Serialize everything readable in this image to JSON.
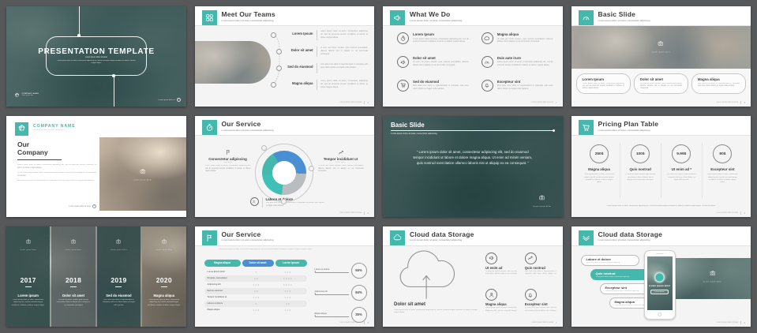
{
  "colors": {
    "accent": "#45b8ae",
    "blue": "#4a8fd4",
    "donut_gray": "#b9bdbf",
    "background": "#57585a"
  },
  "common": {
    "subtitle": "Lorem ipsum dolor sit amet, consectetur adipiscing",
    "para": "Lorem ipsum dolor sit amet, consectetur adipiscing elit, sed do eiusmod tempor incididunt ut labore et dolore magna aliqua.",
    "para2": "Ut enim ad minim veniam, quis nostrud exercitation ullamco laboris nisi ut aliquip ex ea commodo consequat.",
    "para3": "Duis aute irure dolor in reprehenderit in voluptate velit esse cillum dolore eu fugiat nulla pariatur.",
    "footer": "Lorem ipsum dolor sit amet",
    "page": "2",
    "chevron": "›",
    "camera_caption": "Lorem ipsum dolor",
    "camera_icon": "camera-icon"
  },
  "slides": {
    "title_slide": {
      "title": "PRESENTATION TEMPLATE",
      "subtitle": "Lorem ipsum dolor sit amet",
      "logo_icon": "company-logo-icon",
      "logo_name": "COMPANY NAME",
      "logo_sub": "Lorem ipsum dolor",
      "footer_right": "Lorem ipsum dolor sit"
    },
    "meet_teams": {
      "title": "Meet Our Teams",
      "icon": "team-grid-icon",
      "items": [
        {
          "label": "Lorem Ipsum"
        },
        {
          "label": "Dolor sit amet"
        },
        {
          "label": "Sed do eiusmod"
        },
        {
          "label": "Magna aliqua"
        }
      ]
    },
    "what_we_do": {
      "title": "What We Do",
      "icon": "megaphone-icon",
      "items": [
        {
          "icon": "stopwatch-icon",
          "label": "Lorem Ipsum"
        },
        {
          "icon": "megaphone-icon",
          "label": "Dolor sit amet"
        },
        {
          "icon": "cart-icon",
          "label": "Sed do eiusmod"
        },
        {
          "icon": "cloud-icon",
          "label": "Magna aliqua"
        },
        {
          "icon": "gauge-icon",
          "label": "Duis aute irure"
        },
        {
          "icon": "bell-icon",
          "label": "Excepteur sint"
        }
      ]
    },
    "basic_banner": {
      "title": "Basic Slide",
      "icon": "gauge-icon",
      "items": [
        {
          "label": "Lorem Ipsum"
        },
        {
          "label": "Dolor sit amet"
        },
        {
          "label": "Magna aliqua"
        }
      ]
    },
    "our_company": {
      "logo_icon": "company-logo-icon",
      "company": "COMPANY NAME",
      "company_sub": "Lorem ipsum dolor sit amet, consectetur",
      "title_line1": "Our",
      "title_line2": "Company",
      "link": "Lorem ipsum dolor sit amet"
    },
    "our_service_donut": {
      "title": "Our Service",
      "icon": "stopwatch-icon",
      "left": {
        "icon": "flag-icon",
        "label": "Consectetur adipiscing",
        "sub": "Lorem ipsum"
      },
      "right": {
        "icon": "chart-icon",
        "label": "Tempor incididunt ut",
        "sub": "Lorem ipsum"
      },
      "bottom": {
        "icon": "person-icon",
        "label": "Labore et dolore"
      },
      "donut": {
        "segments": [
          {
            "name": "teal",
            "value": 40
          },
          {
            "name": "blue",
            "value": 34
          },
          {
            "name": "gray",
            "value": 26
          }
        ]
      }
    },
    "basic_quote": {
      "title": "Basic Slide",
      "quote": "“ Lorem ipsum dolor sit amet, consectetur adipiscing elit, sed do eiusmod tempor incididunt ut labore et dolore magna aliqua. Ut enim ad minim veniam, quis nostrud exercitation ullamco laboris nisi ut aliquip ex ea consequat. ”"
    },
    "pricing": {
      "title": "Pricing Plan Table",
      "icon": "cart-icon",
      "plans": [
        {
          "price": "250$",
          "name": "Magna aliqua"
        },
        {
          "price": "100$",
          "name": "Quis nostrud"
        },
        {
          "price": "9.99$",
          "name": "Ut enim ad *"
        },
        {
          "price": "80$",
          "name": "Excepteur sint"
        }
      ],
      "footnote": "•  Lorem ipsum dolor sit amet, consectetur adipiscing elit, sed do eiusmod tempor incididunt ut labore et dolore magna aliqua. Ut enim ad minim."
    },
    "years": {
      "columns": [
        {
          "year": "2017",
          "label": "Lorem ipsum"
        },
        {
          "year": "2018",
          "label": "Dolor sit amet"
        },
        {
          "year": "2019",
          "label": "Sed do eiusmod"
        },
        {
          "year": "2020",
          "label": "Magna aliqua"
        }
      ]
    },
    "service_table": {
      "title": "Our Service",
      "icon": "flag-icon",
      "headers": [
        "Magna aliqua",
        "Dolor sit amet",
        "Lorem Ipsum"
      ],
      "rows": [
        {
          "label": "Lorem Ipsum dolor",
          "a": "×",
          "b": "× × ×"
        },
        {
          "label": "Sit amet, consectetur",
          "a": "× ×",
          "b": "× × × ×"
        },
        {
          "label": "Adipiscing elit",
          "a": "× × ×",
          "b": "× × × ×"
        },
        {
          "label": "Sed do eiusmod",
          "a": "× ×",
          "b": "× × ×"
        },
        {
          "label": "Tempor incididunt ut",
          "a": "× × ×",
          "b": "× × ×"
        },
        {
          "label": "Labore et dolore",
          "a": "×",
          "b": "× ×"
        },
        {
          "label": "Magna aliqua",
          "a": "× × ×",
          "b": "× × ×"
        }
      ],
      "stats": [
        {
          "label": "Labore et dolore",
          "value": "55%"
        },
        {
          "label": "Adipiscing elit",
          "value": "84%"
        },
        {
          "label": "Magna aliqua",
          "value": "35%"
        }
      ]
    },
    "cloud_storage": {
      "title": "Cloud data Storage",
      "icon": "cloud-icon",
      "main_label": "Dolor sit amet",
      "items": [
        {
          "icon": "megaphone-icon",
          "label": "Ut enim ad"
        },
        {
          "icon": "chart-icon",
          "label": "Quis nostrud"
        },
        {
          "icon": "person-icon",
          "label": "Magna aliqua"
        },
        {
          "icon": "bell-icon",
          "label": "Excepteur sint"
        }
      ]
    },
    "cloud_phone": {
      "title": "Cloud data Storage",
      "icon": "bird-icon",
      "pills": [
        {
          "label": "Labore et dolore"
        },
        {
          "label": "Quis nostrud"
        },
        {
          "label": "Excepteur sint"
        },
        {
          "label": "Magna aliqua"
        }
      ],
      "phone_label": "Lorem ipsum dolor",
      "phone_button": "Lorem ipsum"
    }
  }
}
